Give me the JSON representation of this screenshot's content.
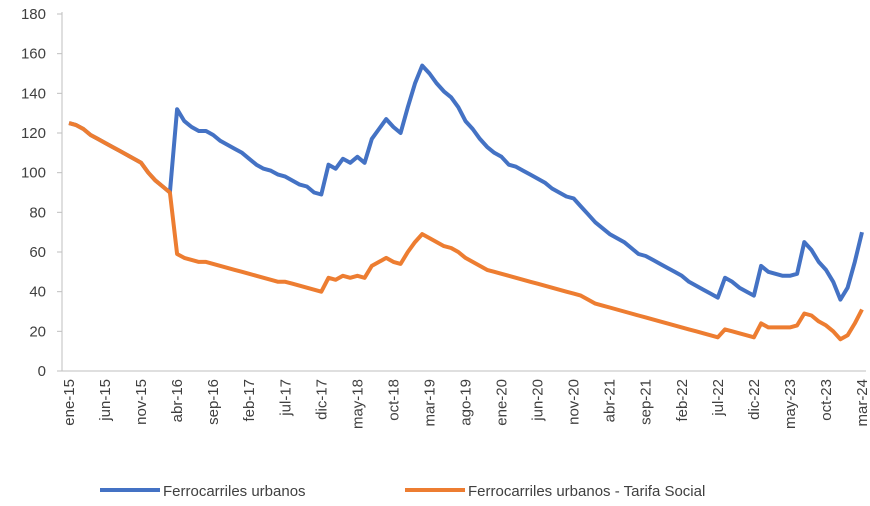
{
  "chart_data": {
    "type": "line",
    "categories": [
      "ene-15",
      null,
      null,
      null,
      null,
      "jun-15",
      null,
      null,
      null,
      null,
      "nov-15",
      null,
      null,
      null,
      null,
      "abr-16",
      null,
      null,
      null,
      null,
      "sep-16",
      null,
      null,
      null,
      null,
      "feb-17",
      null,
      null,
      null,
      null,
      "jul-17",
      null,
      null,
      null,
      null,
      "dic-17",
      null,
      null,
      null,
      null,
      "may-18",
      null,
      null,
      null,
      null,
      "oct-18",
      null,
      null,
      null,
      null,
      "mar-19",
      null,
      null,
      null,
      null,
      "ago-19",
      null,
      null,
      null,
      null,
      "ene-20",
      null,
      null,
      null,
      null,
      "jun-20",
      null,
      null,
      null,
      null,
      "nov-20",
      null,
      null,
      null,
      null,
      "abr-21",
      null,
      null,
      null,
      null,
      "sep-21",
      null,
      null,
      null,
      null,
      "feb-22",
      null,
      null,
      null,
      null,
      "jul-22",
      null,
      null,
      null,
      null,
      "dic-22",
      null,
      null,
      null,
      null,
      "may-23",
      null,
      null,
      null,
      null,
      "oct-23",
      null,
      null,
      null,
      null,
      "mar-24"
    ],
    "series": [
      {
        "name": "Ferrocarriles urbanos",
        "color": "#4472c4",
        "values": [
          125,
          124,
          122,
          119,
          117,
          115,
          113,
          111,
          109,
          107,
          105,
          100,
          96,
          93,
          90,
          132,
          126,
          123,
          121,
          121,
          119,
          116,
          114,
          112,
          110,
          107,
          104,
          102,
          101,
          99,
          98,
          96,
          94,
          93,
          90,
          89,
          104,
          102,
          107,
          105,
          108,
          105,
          117,
          122,
          127,
          123,
          120,
          133,
          145,
          154,
          150,
          145,
          141,
          138,
          133,
          126,
          122,
          117,
          113,
          110,
          108,
          104,
          103,
          101,
          99,
          97,
          95,
          92,
          90,
          88,
          87,
          83,
          79,
          75,
          72,
          69,
          67,
          65,
          62,
          59,
          58,
          56,
          54,
          52,
          50,
          48,
          45,
          43,
          41,
          39,
          37,
          47,
          45,
          42,
          40,
          38,
          53,
          50,
          49,
          48,
          48,
          49,
          65,
          61,
          55,
          51,
          45,
          36,
          42,
          55,
          70
        ]
      },
      {
        "name": "Ferrocarriles urbanos - Tarifa Social",
        "color": "#ed7d31",
        "values": [
          125,
          124,
          122,
          119,
          117,
          115,
          113,
          111,
          109,
          107,
          105,
          100,
          96,
          93,
          90,
          59,
          57,
          56,
          55,
          55,
          54,
          53,
          52,
          51,
          50,
          49,
          48,
          47,
          46,
          45,
          45,
          44,
          43,
          42,
          41,
          40,
          47,
          46,
          48,
          47,
          48,
          47,
          53,
          55,
          57,
          55,
          54,
          60,
          65,
          69,
          67,
          65,
          63,
          62,
          60,
          57,
          55,
          53,
          51,
          50,
          49,
          48,
          47,
          46,
          45,
          44,
          43,
          42,
          41,
          40,
          39,
          38,
          36,
          34,
          33,
          32,
          31,
          30,
          29,
          28,
          27,
          26,
          25,
          24,
          23,
          22,
          21,
          20,
          19,
          18,
          17,
          21,
          20,
          19,
          18,
          17,
          24,
          22,
          22,
          22,
          22,
          23,
          29,
          28,
          25,
          23,
          20,
          16,
          18,
          24,
          31
        ]
      }
    ],
    "ylim": [
      0,
      180
    ],
    "yticks": [
      0,
      20,
      40,
      60,
      80,
      100,
      120,
      140,
      160,
      180
    ],
    "legend": "bottom"
  }
}
